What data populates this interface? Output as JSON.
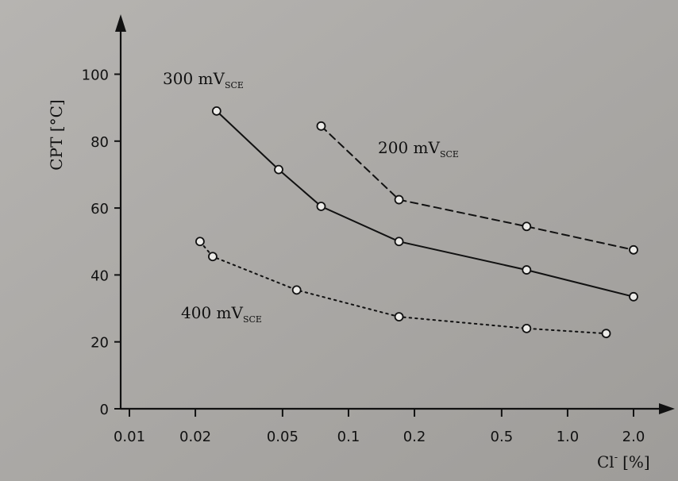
{
  "chart_data": {
    "type": "line",
    "ylabel": "CPT [°C]",
    "xlabel_main": "Cl",
    "xlabel_sup": "-",
    "xlabel_unit": "[%]",
    "x_scale": "log",
    "x_ticks": [
      0.01,
      0.02,
      0.05,
      0.1,
      0.2,
      0.5,
      1.0,
      2.0
    ],
    "x_tick_labels": [
      "0.01",
      "0.02",
      "0.05",
      "0.1",
      "0.2",
      "0.5",
      "1.0",
      "2.0"
    ],
    "y_ticks": [
      0,
      20,
      40,
      60,
      80,
      100
    ],
    "y_tick_labels": [
      "0",
      "20",
      "40",
      "60",
      "80",
      "100"
    ],
    "ylim": [
      0,
      110
    ],
    "grid": false,
    "series": [
      {
        "label_main": "300 mV",
        "label_sub": "SCE",
        "line_style": "solid",
        "x": [
          0.025,
          0.048,
          0.075,
          0.17,
          0.65,
          2.0
        ],
        "y": [
          89,
          71.5,
          60.5,
          50,
          41.5,
          33.5
        ]
      },
      {
        "label_main": "200 mV",
        "label_sub": "SCE",
        "line_style": "dashed",
        "x": [
          0.075,
          0.17,
          0.65,
          2.0
        ],
        "y": [
          84.5,
          62.5,
          54.5,
          47.5
        ]
      },
      {
        "label_main": "400 mV",
        "label_sub": "SCE",
        "line_style": "dotted",
        "x": [
          0.021,
          0.024,
          0.058,
          0.17,
          0.65,
          1.5
        ],
        "y": [
          50,
          45.5,
          35.5,
          27.5,
          24,
          22.5
        ]
      }
    ]
  }
}
